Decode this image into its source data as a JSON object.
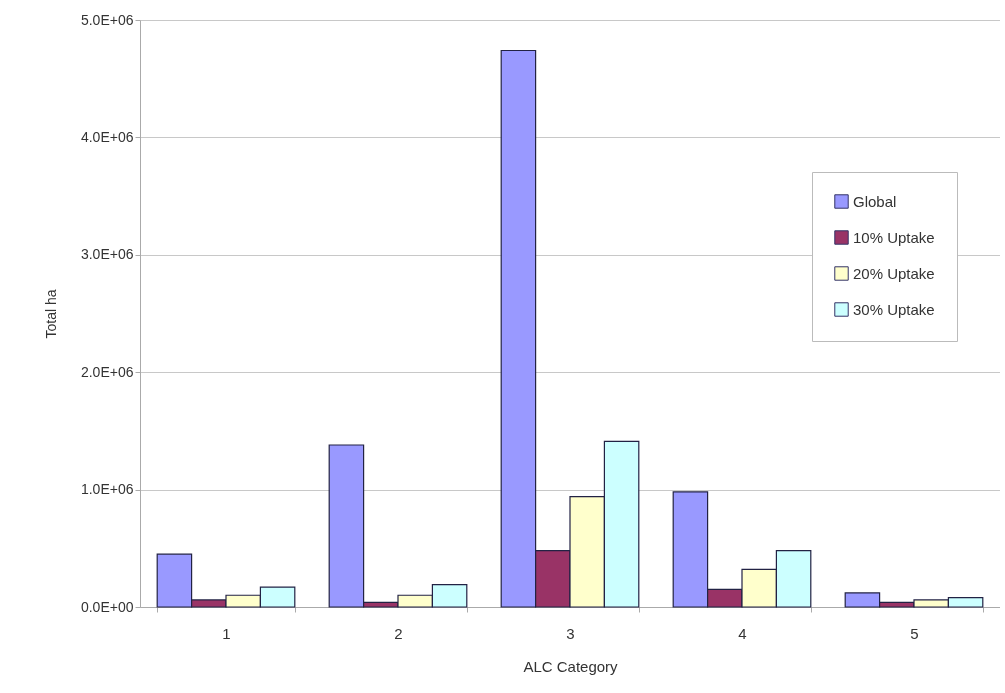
{
  "chart_data": {
    "type": "bar",
    "xlabel": "ALC Category",
    "ylabel": "Total ha",
    "categories": [
      "1",
      "2",
      "3",
      "4",
      "5"
    ],
    "series": [
      {
        "name": "Global",
        "color": "#9999ff",
        "values": [
          450000,
          1380000,
          4740000,
          980000,
          120000
        ]
      },
      {
        "name": "10% Uptake",
        "color": "#993366",
        "values": [
          60000,
          40000,
          480000,
          150000,
          40000
        ]
      },
      {
        "name": "20% Uptake",
        "color": "#ffffcc",
        "values": [
          100000,
          100000,
          940000,
          320000,
          60000
        ]
      },
      {
        "name": "30% Uptake",
        "color": "#ccffff",
        "values": [
          170000,
          190000,
          1410000,
          480000,
          80000
        ]
      }
    ],
    "ylim": [
      0,
      5000000
    ],
    "yticks": [
      {
        "value": 0,
        "label": "0.0E+00"
      },
      {
        "value": 1000000,
        "label": "1.0E+06"
      },
      {
        "value": 2000000,
        "label": "2.0E+06"
      },
      {
        "value": 3000000,
        "label": "3.0E+06"
      },
      {
        "value": 4000000,
        "label": "4.0E+06"
      },
      {
        "value": 5000000,
        "label": "5.0E+06"
      }
    ],
    "grid": "y",
    "legend": "right"
  }
}
